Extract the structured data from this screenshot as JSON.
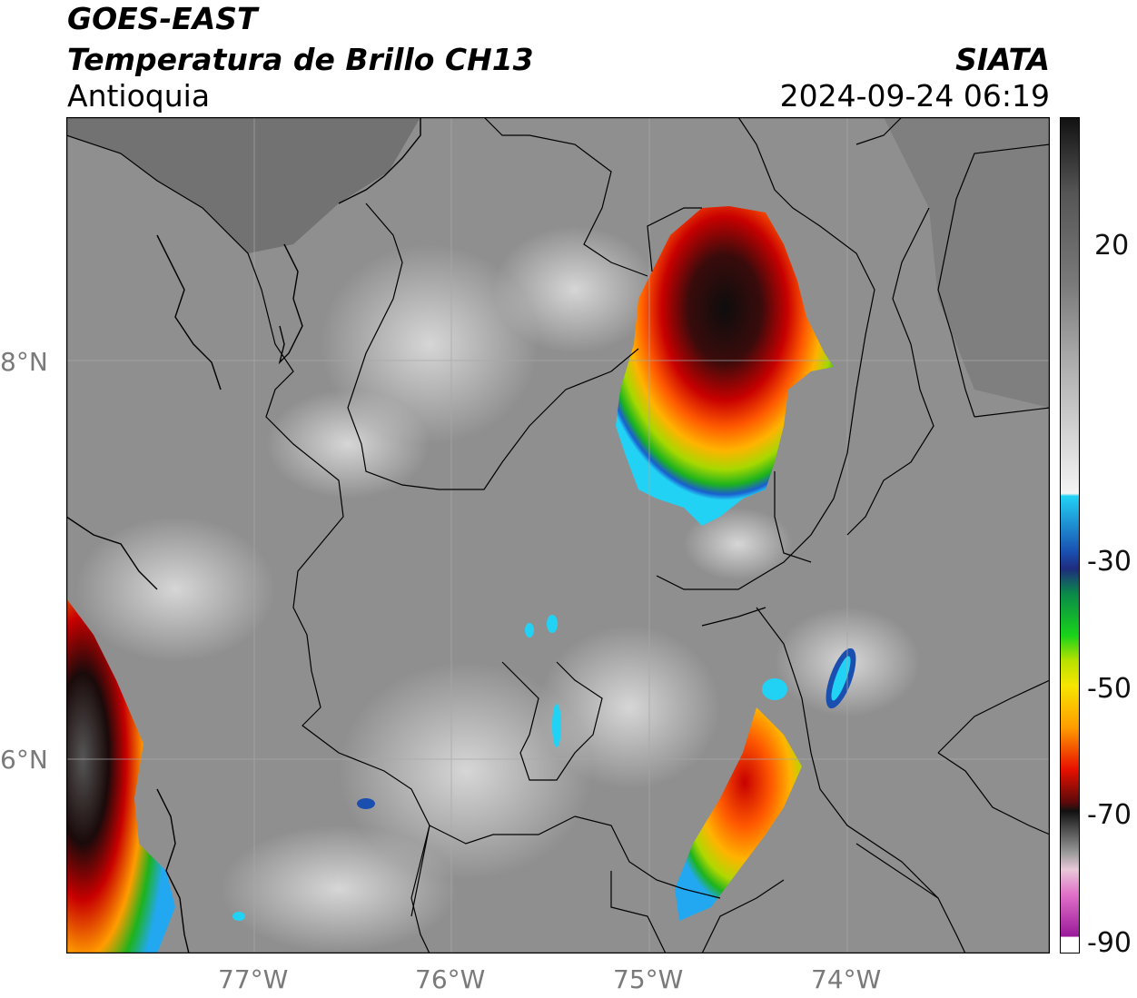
{
  "header": {
    "satellite": "GOES-EAST",
    "product": "Temperatura de Brillo CH13",
    "region": "Antioquia",
    "source": "SIATA",
    "datetime": "2024-09-24 06:19"
  },
  "axes": {
    "lat_labels": [
      "8°N",
      "6°N"
    ],
    "lon_labels": [
      "77°W",
      "76°W",
      "75°W",
      "74°W"
    ]
  },
  "colorbar": {
    "tick_labels": [
      "20",
      "-30",
      "-50",
      "-70",
      "-90"
    ],
    "colors": {
      "magenta": "#b03ab0",
      "black": "#111111",
      "red": "#d40000",
      "orange": "#ff8c00",
      "yellow": "#f6e600",
      "green": "#19b21a",
      "blue": "#1e3c9e",
      "cyan": "#22d2f5"
    }
  },
  "map_colors": {
    "background_gray": "#8c8c8c",
    "ocean_gray": "#6e6e6e",
    "border": "#000000"
  }
}
